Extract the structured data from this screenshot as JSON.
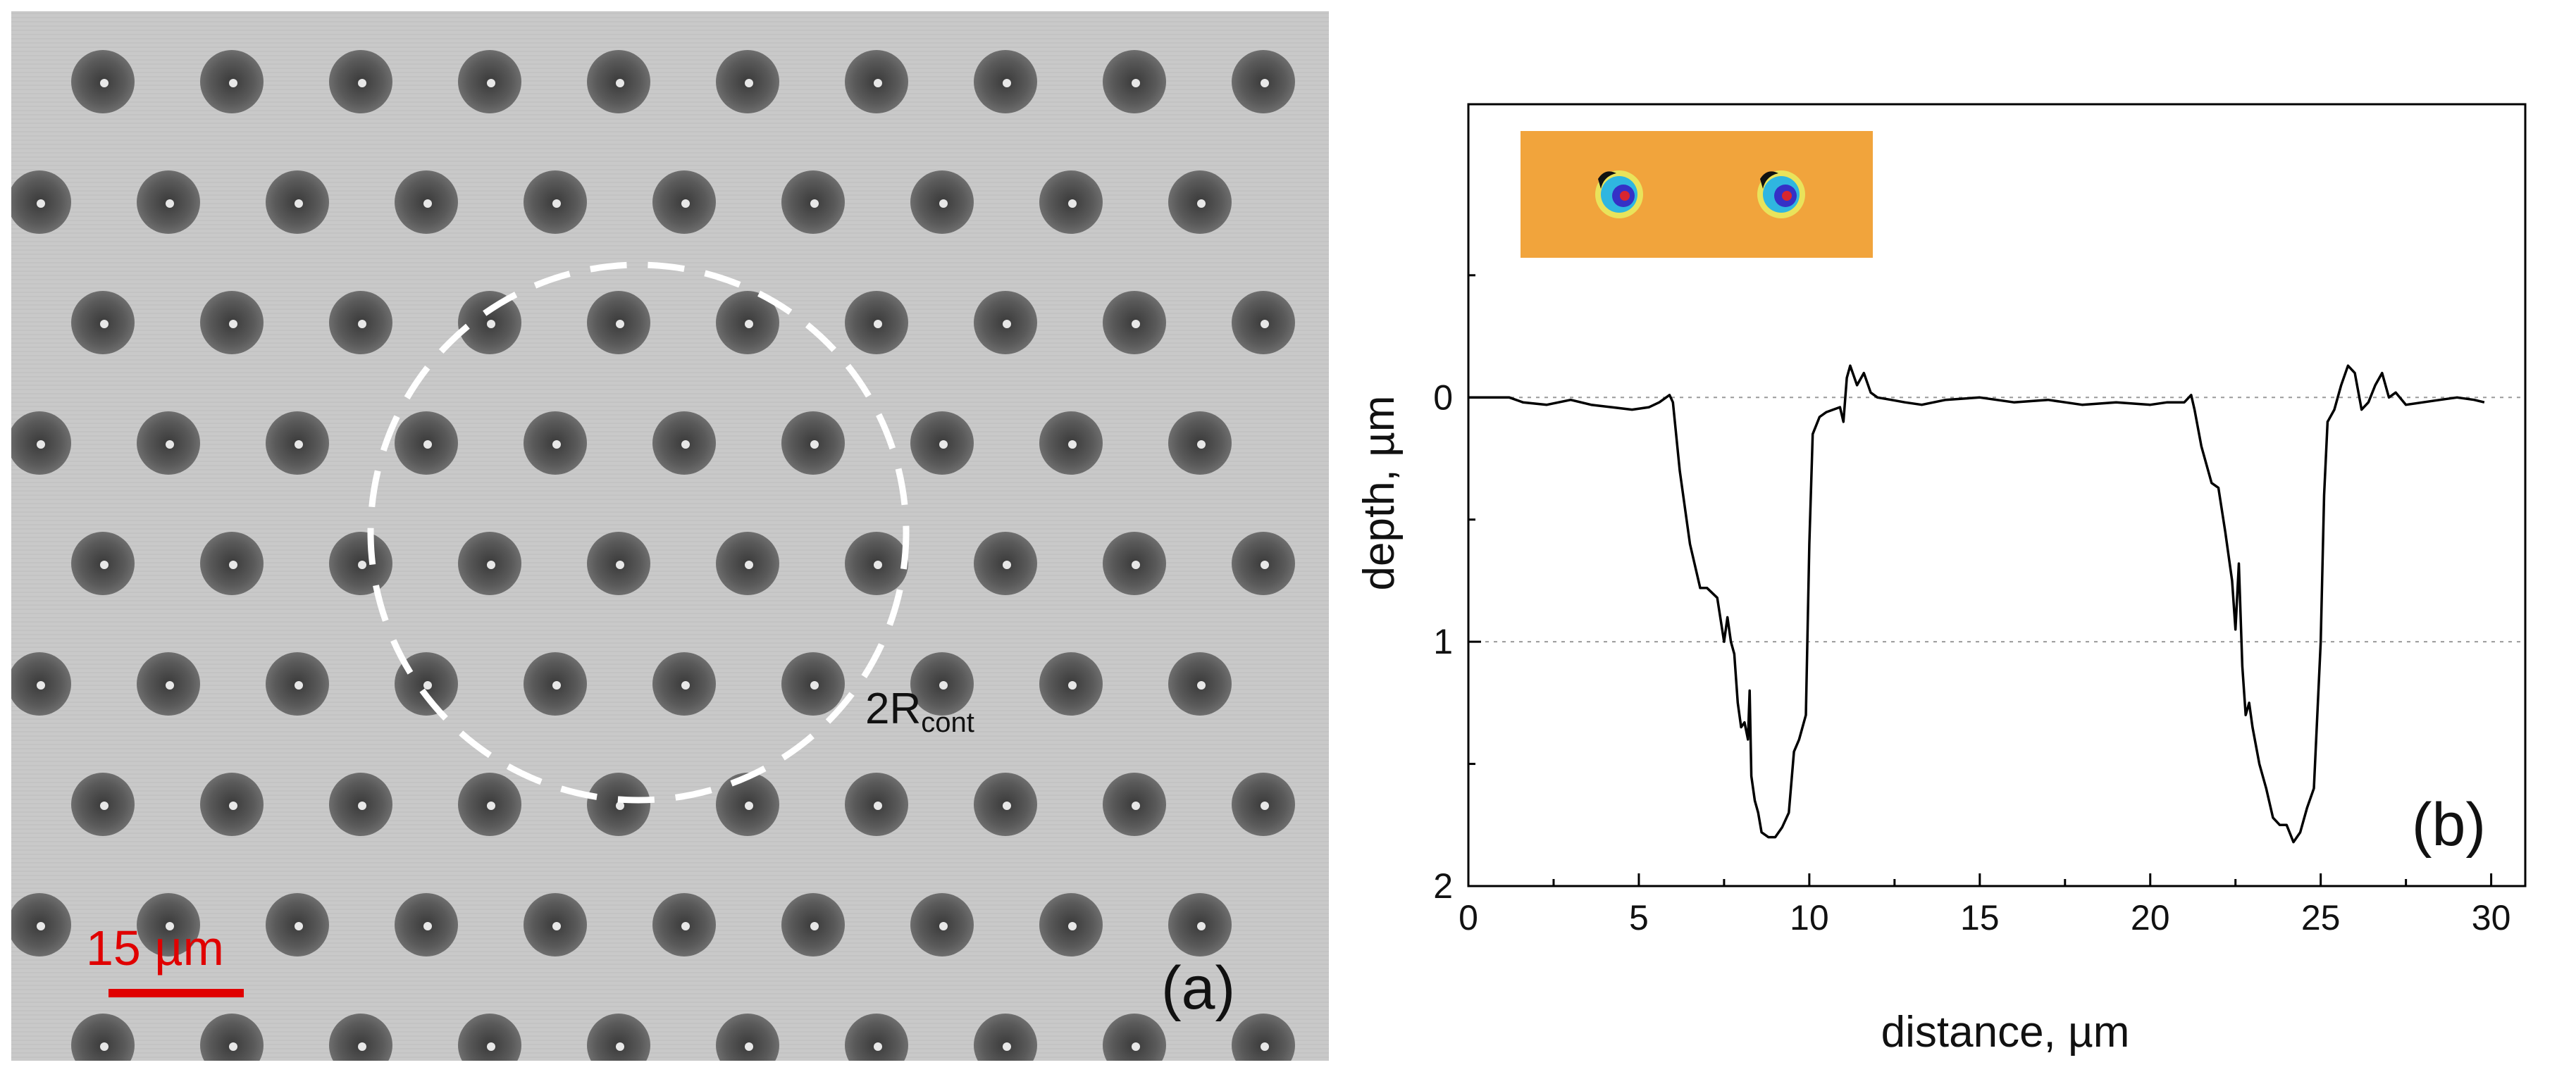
{
  "panel_a": {
    "label": "(a)",
    "scale_bar": {
      "text": "15 µm",
      "color": "#e00000"
    },
    "circle_label": {
      "main": "2R",
      "sub": "cont"
    },
    "lattice": {
      "rows": 9,
      "columns": 10
    }
  },
  "chart_data": {
    "type": "line",
    "panel_label": "(b)",
    "xlabel": "distance, µm",
    "ylabel": "depth, µm",
    "xlim": [
      0,
      31
    ],
    "ylim": [
      2,
      -1.2
    ],
    "y_inverted": true,
    "x_ticks": [
      0,
      5,
      10,
      15,
      20,
      25,
      30
    ],
    "x_tick_labels": [
      "0",
      "5",
      "10",
      "15",
      "20",
      "25",
      "30"
    ],
    "y_ticks": [
      0,
      1,
      2
    ],
    "y_tick_labels": [
      "0",
      "1",
      "2"
    ],
    "gridlines_y": [
      0,
      1
    ],
    "inset": "3D surface map of two craters",
    "series": [
      {
        "name": "depth profile",
        "color": "#000000",
        "x": [
          0,
          1.2,
          1.6,
          2.3,
          3.0,
          3.6,
          4.2,
          4.8,
          5.3,
          5.6,
          5.9,
          6.0,
          6.2,
          6.5,
          6.8,
          7.0,
          7.3,
          7.5,
          7.6,
          7.7,
          7.8,
          7.9,
          8.0,
          8.1,
          8.2,
          8.25,
          8.3,
          8.4,
          8.5,
          8.6,
          8.8,
          9.0,
          9.2,
          9.4,
          9.55,
          9.7,
          9.9,
          10.0,
          10.1,
          10.3,
          10.5,
          10.7,
          10.9,
          11.0,
          11.1,
          11.2,
          11.4,
          11.6,
          11.8,
          12.0,
          12.4,
          12.8,
          13.3,
          14.0,
          15.0,
          16.0,
          17.0,
          18.0,
          19.0,
          20.0,
          20.5,
          21.0,
          21.2,
          21.3,
          21.5,
          21.8,
          22.0,
          22.2,
          22.4,
          22.5,
          22.6,
          22.7,
          22.8,
          22.9,
          23.0,
          23.2,
          23.4,
          23.6,
          23.8,
          24.0,
          24.2,
          24.4,
          24.6,
          24.8,
          25.0,
          25.1,
          25.2,
          25.4,
          25.6,
          25.8,
          26.0,
          26.2,
          26.4,
          26.6,
          26.8,
          27.0,
          27.2,
          27.5,
          28.0,
          28.5,
          29.0,
          29.5,
          29.8
        ],
        "y": [
          0,
          0,
          0.02,
          0.03,
          0.01,
          0.03,
          0.04,
          0.05,
          0.04,
          0.02,
          -0.01,
          0.02,
          0.3,
          0.6,
          0.78,
          0.78,
          0.82,
          1.0,
          0.9,
          1.0,
          1.05,
          1.25,
          1.35,
          1.33,
          1.4,
          1.2,
          1.55,
          1.65,
          1.7,
          1.78,
          1.8,
          1.8,
          1.76,
          1.7,
          1.45,
          1.4,
          1.3,
          0.6,
          0.15,
          0.08,
          0.06,
          0.05,
          0.04,
          0.1,
          -0.08,
          -0.13,
          -0.05,
          -0.1,
          -0.02,
          0.0,
          0.01,
          0.02,
          0.03,
          0.01,
          0.0,
          0.02,
          0.01,
          0.03,
          0.02,
          0.03,
          0.02,
          0.02,
          -0.01,
          0.05,
          0.2,
          0.35,
          0.37,
          0.55,
          0.75,
          0.95,
          0.68,
          1.1,
          1.3,
          1.25,
          1.35,
          1.5,
          1.6,
          1.72,
          1.75,
          1.75,
          1.82,
          1.78,
          1.68,
          1.6,
          1.0,
          0.4,
          0.1,
          0.05,
          -0.05,
          -0.13,
          -0.1,
          0.05,
          0.02,
          -0.05,
          -0.1,
          0.0,
          -0.02,
          0.03,
          0.02,
          0.01,
          0.0,
          0.01,
          0.02
        ]
      }
    ]
  }
}
